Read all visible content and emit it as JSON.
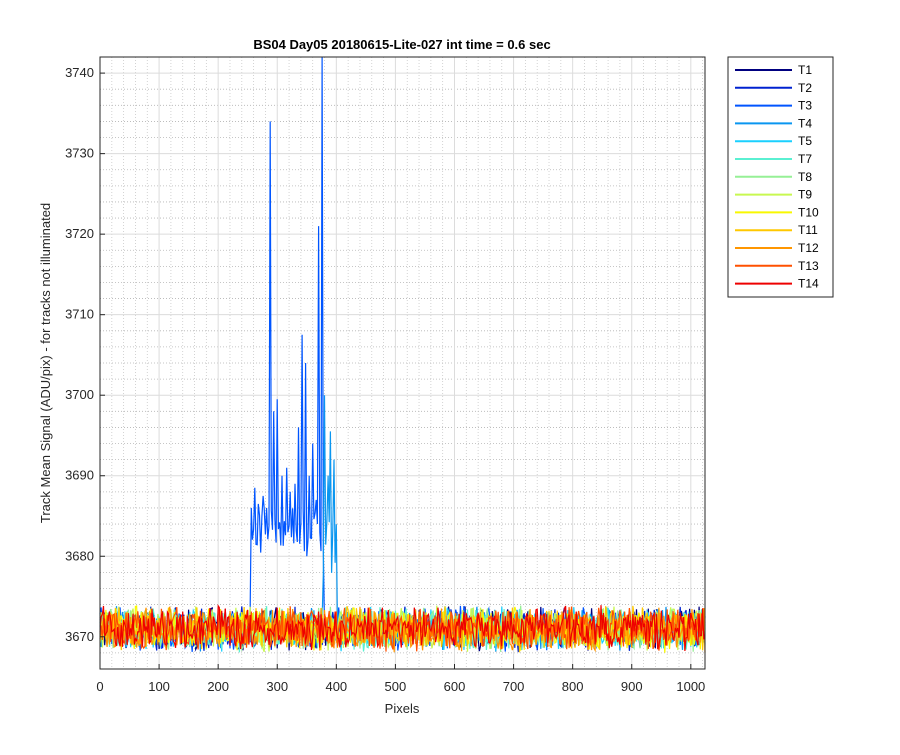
{
  "chart_data": {
    "type": "line",
    "title": "BS04 Day05 20180615-Lite-027 int time = 0.6 sec",
    "xlabel": "Pixels",
    "ylabel": "Track Mean Signal (ADU/pix) - for tracks not illuminated",
    "xlim": [
      0,
      1024
    ],
    "ylim": [
      3666,
      3742
    ],
    "x_ticks": [
      "0",
      "100",
      "200",
      "300",
      "400",
      "500",
      "600",
      "700",
      "800",
      "900",
      "1000"
    ],
    "y_ticks": [
      "3670",
      "3680",
      "3690",
      "3700",
      "3710",
      "3720",
      "3730",
      "3740"
    ],
    "grid": true,
    "minor_grid": true,
    "legend_position": "outside-top-right",
    "baseline_level": 3671,
    "series": [
      {
        "name": "T1",
        "color": "#000080"
      },
      {
        "name": "T2",
        "color": "#0022d0"
      },
      {
        "name": "T3",
        "color": "#0055ff",
        "spikes": [
          {
            "x": 255,
            "y": 3686
          },
          {
            "x": 262,
            "y": 3688.5
          },
          {
            "x": 268,
            "y": 3686.5
          },
          {
            "x": 275,
            "y": 3687.5
          },
          {
            "x": 282,
            "y": 3686
          },
          {
            "x": 288,
            "y": 3734
          },
          {
            "x": 293,
            "y": 3698
          },
          {
            "x": 300,
            "y": 3699.5
          },
          {
            "x": 307,
            "y": 3690
          },
          {
            "x": 315,
            "y": 3691
          },
          {
            "x": 322,
            "y": 3688
          },
          {
            "x": 330,
            "y": 3689
          },
          {
            "x": 336,
            "y": 3696
          },
          {
            "x": 342,
            "y": 3707.5
          },
          {
            "x": 348,
            "y": 3704
          },
          {
            "x": 354,
            "y": 3690
          },
          {
            "x": 360,
            "y": 3694
          },
          {
            "x": 366,
            "y": 3687
          },
          {
            "x": 370,
            "y": 3721
          },
          {
            "x": 376,
            "y": 3742
          }
        ]
      },
      {
        "name": "T4",
        "color": "#0a96f0",
        "spikes": [
          {
            "x": 379,
            "y": 3700
          },
          {
            "x": 385,
            "y": 3690
          },
          {
            "x": 390,
            "y": 3695.5
          },
          {
            "x": 396,
            "y": 3692
          }
        ]
      },
      {
        "name": "T5",
        "color": "#1ad0ff"
      },
      {
        "name": "T7",
        "color": "#5af0d2"
      },
      {
        "name": "T8",
        "color": "#96f096"
      },
      {
        "name": "T9",
        "color": "#c8f850"
      },
      {
        "name": "T10",
        "color": "#f8f800"
      },
      {
        "name": "T11",
        "color": "#ffc800"
      },
      {
        "name": "T12",
        "color": "#ff9600"
      },
      {
        "name": "T13",
        "color": "#ff5000"
      },
      {
        "name": "T14",
        "color": "#ee0000"
      }
    ]
  }
}
